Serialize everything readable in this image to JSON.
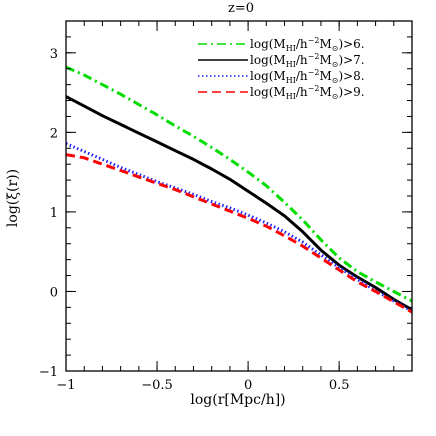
{
  "chart_data": {
    "type": "line",
    "title": "z=0",
    "xlabel": "log(r[Mpc/h])",
    "ylabel": "log(ξ(r))",
    "xlim": [
      -1,
      0.9
    ],
    "ylim": [
      -1,
      3.4
    ],
    "xticks": [
      -1,
      -0.5,
      0,
      0.5
    ],
    "xtick_labels": [
      "−1",
      "−0.5",
      "0",
      "0.5"
    ],
    "yticks": [
      -1,
      0,
      1,
      2,
      3
    ],
    "ytick_labels": [
      "−1",
      "0",
      "1",
      "2",
      "3"
    ],
    "grid": false,
    "legend_position": "top-right",
    "series": [
      {
        "name": "log(M_HI/h^-2 M_⊙)>6.",
        "legend": {
          "pre": "log(M",
          "sub": "HI",
          "mid": "/h",
          "sup": "−2",
          "m": "M",
          "sun": "⊙",
          "post": ")>6."
        },
        "color": "#00dd00",
        "dash": "dashdot",
        "x": [
          -1.0,
          -0.9,
          -0.8,
          -0.7,
          -0.6,
          -0.5,
          -0.4,
          -0.3,
          -0.2,
          -0.1,
          0.0,
          0.1,
          0.2,
          0.3,
          0.4,
          0.5,
          0.6,
          0.7,
          0.8,
          0.9
        ],
        "y": [
          2.82,
          2.72,
          2.6,
          2.48,
          2.35,
          2.22,
          2.08,
          1.95,
          1.81,
          1.66,
          1.5,
          1.33,
          1.12,
          0.9,
          0.65,
          0.42,
          0.25,
          0.12,
          0.0,
          -0.12
        ]
      },
      {
        "name": "log(M_HI/h^-2 M_⊙)>7.",
        "legend": {
          "pre": "log(M",
          "sub": "HI",
          "mid": "/h",
          "sup": "−2",
          "m": "M",
          "sun": "⊙",
          "post": ")>7."
        },
        "color": "#000000",
        "dash": "solid",
        "x": [
          -1.0,
          -0.9,
          -0.8,
          -0.7,
          -0.6,
          -0.5,
          -0.4,
          -0.3,
          -0.2,
          -0.1,
          0.0,
          0.1,
          0.2,
          0.3,
          0.4,
          0.5,
          0.6,
          0.7,
          0.8,
          0.9
        ],
        "y": [
          2.45,
          2.33,
          2.21,
          2.1,
          1.99,
          1.88,
          1.77,
          1.66,
          1.54,
          1.41,
          1.26,
          1.11,
          0.95,
          0.75,
          0.52,
          0.33,
          0.18,
          0.05,
          -0.1,
          -0.23
        ]
      },
      {
        "name": "log(M_HI/h^-2 M_⊙)>8.",
        "legend": {
          "pre": "log(M",
          "sub": "HI",
          "mid": "/h",
          "sup": "−2",
          "m": "M",
          "sun": "⊙",
          "post": ")>8."
        },
        "color": "#2020ff",
        "dash": "dotted",
        "x": [
          -1.0,
          -0.9,
          -0.8,
          -0.7,
          -0.6,
          -0.5,
          -0.4,
          -0.3,
          -0.2,
          -0.1,
          0.0,
          0.1,
          0.2,
          0.3,
          0.4,
          0.5,
          0.6,
          0.7,
          0.8,
          0.9
        ],
        "y": [
          1.86,
          1.76,
          1.66,
          1.56,
          1.47,
          1.38,
          1.3,
          1.22,
          1.13,
          1.05,
          0.96,
          0.86,
          0.75,
          0.62,
          0.46,
          0.3,
          0.15,
          0.01,
          -0.12,
          -0.25
        ]
      },
      {
        "name": "log(M_HI/h^-2 M_⊙)>9.",
        "legend": {
          "pre": "log(M",
          "sub": "HI",
          "mid": "/h",
          "sup": "−2",
          "m": "M",
          "sun": "⊙",
          "post": ")>9."
        },
        "color": "#ff0000",
        "dash": "dashed",
        "x": [
          -1.0,
          -0.9,
          -0.8,
          -0.7,
          -0.6,
          -0.5,
          -0.4,
          -0.3,
          -0.2,
          -0.1,
          0.0,
          0.1,
          0.2,
          0.3,
          0.4,
          0.5,
          0.6,
          0.7,
          0.8,
          0.9
        ],
        "y": [
          1.72,
          1.68,
          1.6,
          1.52,
          1.44,
          1.36,
          1.28,
          1.19,
          1.1,
          1.01,
          0.92,
          0.82,
          0.7,
          0.57,
          0.42,
          0.27,
          0.12,
          0.0,
          -0.13,
          -0.26
        ]
      }
    ]
  }
}
